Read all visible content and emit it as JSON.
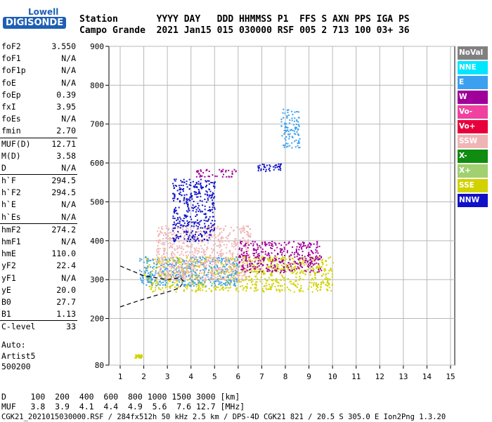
{
  "logo": {
    "line1": "Lowell",
    "line2": "DIGISONDE"
  },
  "header": {
    "row1": "Station       YYYY DAY   DDD HHMMSS P1  FFS S AXN PPS IGA PS",
    "row2": "Campo Grande  2021 Jan15 015 030000 RSF 005 2 713 100 03+ 36"
  },
  "params": [
    {
      "k": "foF2",
      "v": "3.550",
      "sep": false
    },
    {
      "k": "foF1",
      "v": "N/A",
      "sep": false
    },
    {
      "k": "foF1p",
      "v": "N/A",
      "sep": false
    },
    {
      "k": "foE",
      "v": "N/A",
      "sep": false
    },
    {
      "k": "foEp",
      "v": "0.39",
      "sep": false
    },
    {
      "k": "fxI",
      "v": "3.95",
      "sep": false
    },
    {
      "k": "foEs",
      "v": "N/A",
      "sep": false
    },
    {
      "k": "fmin",
      "v": "2.70",
      "sep": false
    },
    {
      "k": "MUF(D)",
      "v": "12.71",
      "sep": true
    },
    {
      "k": "M(D)",
      "v": "3.58",
      "sep": false
    },
    {
      "k": "D",
      "v": "N/A",
      "sep": false
    },
    {
      "k": "h`F",
      "v": "294.5",
      "sep": true
    },
    {
      "k": "h`F2",
      "v": "294.5",
      "sep": false
    },
    {
      "k": "h`E",
      "v": "N/A",
      "sep": false
    },
    {
      "k": "h`Es",
      "v": "N/A",
      "sep": false
    },
    {
      "k": "hmF2",
      "v": "274.2",
      "sep": true
    },
    {
      "k": "hmF1",
      "v": "N/A",
      "sep": false
    },
    {
      "k": "hmE",
      "v": "110.0",
      "sep": false
    },
    {
      "k": "yF2",
      "v": "22.4",
      "sep": false
    },
    {
      "k": "yF1",
      "v": "N/A",
      "sep": false
    },
    {
      "k": "yE",
      "v": "20.0",
      "sep": false
    },
    {
      "k": "B0",
      "v": "27.7",
      "sep": false
    },
    {
      "k": "B1",
      "v": "1.13",
      "sep": false
    },
    {
      "k": "C-level",
      "v": "33",
      "sep": true
    }
  ],
  "auto": {
    "line1": "Auto:",
    "line2": "Artist5",
    "line3": "500200"
  },
  "legend": [
    {
      "label": "NoVal",
      "color": "#808080"
    },
    {
      "label": "NNE",
      "color": "#00e6ff"
    },
    {
      "label": "E",
      "color": "#3ca0f0"
    },
    {
      "label": "W",
      "color": "#a0009a"
    },
    {
      "label": "Vo-",
      "color": "#f040a0"
    },
    {
      "label": "Vo+",
      "color": "#e8003c"
    },
    {
      "label": "SSW",
      "color": "#f0b4b4"
    },
    {
      "label": "X-",
      "color": "#108c10"
    },
    {
      "label": "X+",
      "color": "#a0d070"
    },
    {
      "label": "SSE",
      "color": "#d2d200"
    },
    {
      "label": "NNW",
      "color": "#1010c8"
    }
  ],
  "chart_data": {
    "type": "scatter",
    "xlim": [
      1,
      15
    ],
    "ylim": [
      80,
      900
    ],
    "xticks": [
      "1",
      "2",
      "3",
      "4",
      "5",
      "6",
      "7",
      "8",
      "9",
      "10",
      "11",
      "12",
      "13",
      "14",
      "15"
    ],
    "yticks": [
      "80",
      "200",
      "300",
      "400",
      "500",
      "600",
      "700",
      "800",
      "900"
    ],
    "grid": true,
    "regions": [
      {
        "series": "SSE",
        "x": [
          2.0,
          10.0
        ],
        "y": [
          270,
          360
        ]
      },
      {
        "series": "E",
        "x": [
          1.8,
          6.0
        ],
        "y": [
          285,
          360
        ]
      },
      {
        "series": "SSW",
        "x": [
          2.5,
          6.5
        ],
        "y": [
          300,
          440
        ]
      },
      {
        "series": "W",
        "x": [
          6.0,
          9.5
        ],
        "y": [
          320,
          400
        ]
      },
      {
        "series": "NNW",
        "x": [
          3.2,
          5.0
        ],
        "y": [
          400,
          560
        ]
      },
      {
        "series": "E",
        "x": [
          7.8,
          8.6
        ],
        "y": [
          640,
          740
        ]
      },
      {
        "series": "NNW",
        "x": [
          6.8,
          7.8
        ],
        "y": [
          580,
          600
        ]
      },
      {
        "series": "W",
        "x": [
          4.2,
          6.0
        ],
        "y": [
          565,
          585
        ]
      },
      {
        "series": "SSE",
        "x": [
          1.6,
          1.9
        ],
        "y": [
          100,
          108
        ]
      }
    ],
    "dashed_curve": {
      "x": [
        1,
        2,
        3,
        3.5,
        3.7,
        3.55,
        3,
        2,
        1
      ],
      "y": [
        230,
        250,
        268,
        278,
        295,
        305,
        300,
        310,
        335
      ]
    }
  },
  "footer": {
    "line1": "D     100  200  400  600  800 1000 1500 3000 [km]",
    "line2": "MUF   3.8  3.9  4.1  4.4  4.9  5.6  7.6 12.7 [MHz]",
    "line3": "CGK21_2021015030000.RSF / 284fx512h 50 kHz 2.5 km / DPS-4D CGK21 821 / 20.5 S 305.0 E Ion2Png 1.3.20"
  }
}
